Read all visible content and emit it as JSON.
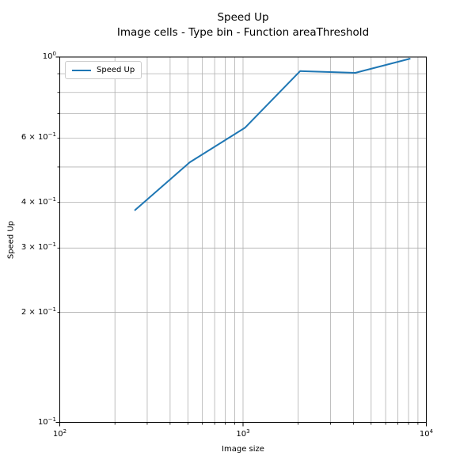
{
  "title": {
    "line1": "Speed Up",
    "line2": "Image cells - Type bin - Function areaThreshold"
  },
  "colors": {
    "line": "#1f77b4",
    "grid": "#b0b0b0",
    "spine": "#000000",
    "legend_border": "#cccccc",
    "text": "#000000",
    "background": "#ffffff"
  },
  "chart_data": {
    "type": "line",
    "title": "Speed Up",
    "subtitle": "Image cells - Type bin - Function areaThreshold",
    "xlabel": "Image size",
    "ylabel": "Speed Up",
    "xscale": "log",
    "yscale": "log",
    "xlim": [
      100,
      10000
    ],
    "ylim": [
      0.1,
      1.0
    ],
    "grid": "both",
    "legend_position": "upper left",
    "series": [
      {
        "name": "Speed Up",
        "color": "#1f77b4",
        "x": [
          256,
          512,
          1024,
          2048,
          4096,
          8192
        ],
        "y": [
          0.38,
          0.515,
          0.64,
          0.915,
          0.905,
          0.99
        ]
      }
    ],
    "x_ticks": [
      {
        "value": 100,
        "base": "10",
        "exp": "2"
      },
      {
        "value": 1000,
        "base": "10",
        "exp": "3"
      },
      {
        "value": 10000,
        "base": "10",
        "exp": "4"
      }
    ],
    "y_ticks": [
      {
        "value": 1.0,
        "base": "10",
        "exp": "0"
      },
      {
        "value": 0.6,
        "base": "6 × 10",
        "exp": "−1"
      },
      {
        "value": 0.4,
        "base": "4 × 10",
        "exp": "−1"
      },
      {
        "value": 0.3,
        "base": "3 × 10",
        "exp": "−1"
      },
      {
        "value": 0.2,
        "base": "2 × 10",
        "exp": "−1"
      },
      {
        "value": 0.1,
        "base": "10",
        "exp": "−1"
      }
    ]
  }
}
